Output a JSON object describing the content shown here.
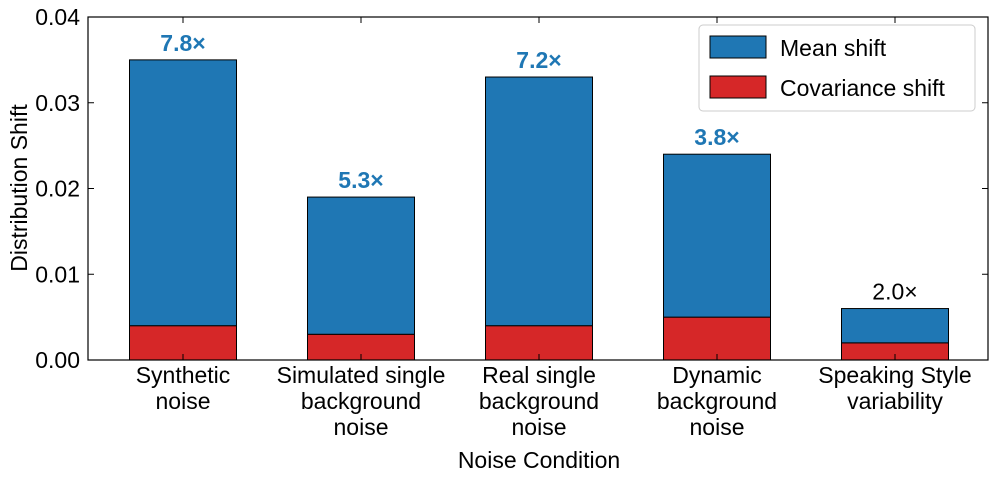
{
  "chart_data": {
    "type": "bar",
    "stacked": true,
    "categories": [
      [
        "Synthetic",
        "noise"
      ],
      [
        "Simulated single",
        "background",
        "noise"
      ],
      [
        "Real single",
        "background",
        "noise"
      ],
      [
        "Dynamic",
        "background",
        "noise"
      ],
      [
        "Speaking Style",
        "variability"
      ]
    ],
    "series": [
      {
        "name": "Covariance shift",
        "color": "#d62728",
        "values": [
          0.004,
          0.003,
          0.004,
          0.005,
          0.002
        ]
      },
      {
        "name": "Mean shift",
        "color": "#1f77b4",
        "values": [
          0.031,
          0.016,
          0.029,
          0.019,
          0.004
        ]
      }
    ],
    "totals": [
      0.035,
      0.019,
      0.033,
      0.024,
      0.006
    ],
    "ratio_labels": [
      "7.8×",
      "5.3×",
      "7.2×",
      "3.8×",
      "2.0×"
    ],
    "ratio_label_colors": [
      "#1f77b4",
      "#1f77b4",
      "#1f77b4",
      "#1f77b4",
      "#000000"
    ],
    "ratio_label_bold": [
      true,
      true,
      true,
      true,
      false
    ],
    "xlabel": "Noise Condition",
    "ylabel": "Distribution Shift",
    "ylim": [
      0,
      0.04
    ],
    "yticks": [
      0,
      0.01,
      0.02,
      0.03,
      0.04
    ],
    "ytick_labels": [
      "0.00",
      "0.01",
      "0.02",
      "0.03",
      "0.04"
    ],
    "legend": {
      "position": "top-right",
      "entries": [
        {
          "label": "Mean shift",
          "color": "#1f77b4"
        },
        {
          "label": "Covariance shift",
          "color": "#d62728"
        }
      ]
    },
    "grid": false
  }
}
